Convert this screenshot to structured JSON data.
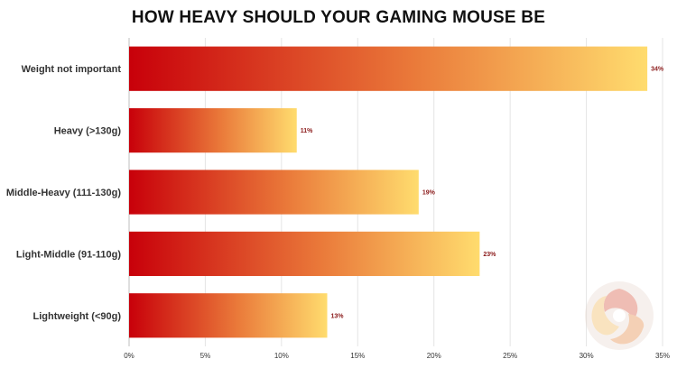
{
  "chart_data": {
    "type": "bar",
    "orientation": "horizontal",
    "title": "HOW HEAVY SHOULD YOUR GAMING MOUSE BE",
    "categories": [
      "Weight not important",
      "Heavy (>130g)",
      "Middle-Heavy (111-130g)",
      "Light-Middle (91-110g)",
      "Lightweight (<90g)"
    ],
    "values": [
      34,
      11,
      19,
      23,
      13
    ],
    "value_labels": [
      "34%",
      "11%",
      "19%",
      "23%",
      "13%"
    ],
    "x_ticks": [
      "0%",
      "5%",
      "10%",
      "15%",
      "20%",
      "25%",
      "30%",
      "35%"
    ],
    "xlim": [
      0,
      35
    ],
    "grid": true,
    "colors": {
      "gradient_start": "#c8000a",
      "gradient_mid": "#ea7a3a",
      "gradient_end": "#ffdc6e",
      "value_label": "#8b1a1a"
    }
  },
  "logo": {
    "icon": "swirl-logo-icon"
  }
}
